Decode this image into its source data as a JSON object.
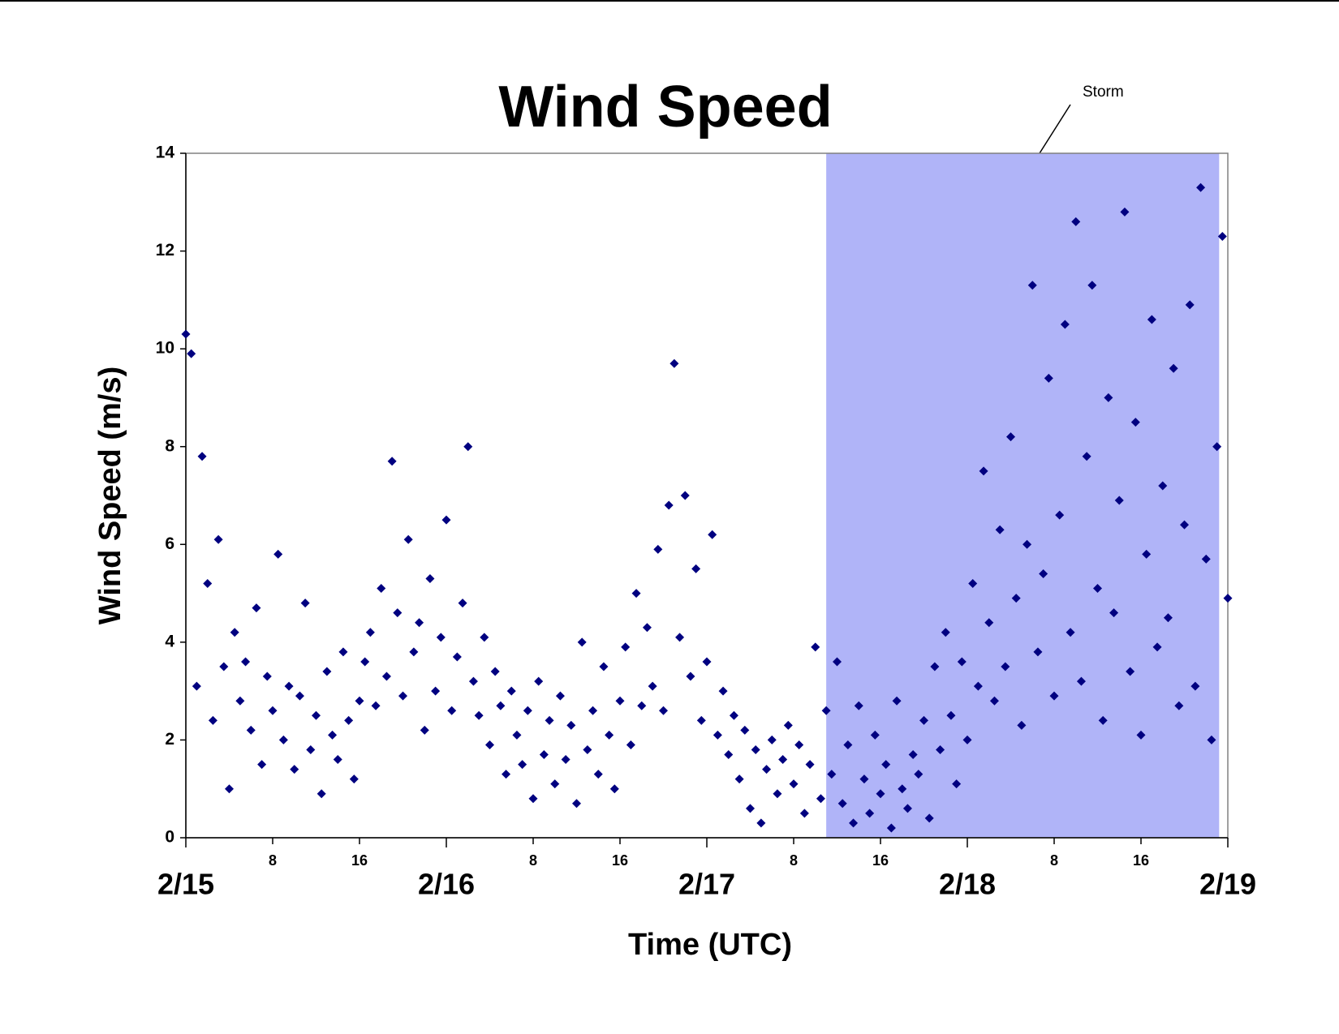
{
  "chart_data": {
    "type": "scatter",
    "title": "Wind Speed",
    "xlabel": "Time (UTC)",
    "ylabel": "Wind Speed (m/s)",
    "color": "#000080",
    "xlim": [
      0,
      96
    ],
    "ylim": [
      0,
      14
    ],
    "yticks": [
      0,
      2,
      4,
      6,
      8,
      10,
      12,
      14
    ],
    "xticks": [
      {
        "value": 0,
        "label": "2/15"
      },
      {
        "value": 24,
        "label": "2/16"
      },
      {
        "value": 48,
        "label": "2/17"
      },
      {
        "value": 72,
        "label": "2/18"
      },
      {
        "value": 96,
        "label": "2/19"
      }
    ],
    "xticks_minor": [
      8,
      16,
      {
        "value": 32,
        "label": "8"
      },
      {
        "value": 40,
        "label": "16"
      },
      {
        "value": 56,
        "label": "8"
      },
      {
        "value": 64,
        "label": "16"
      },
      {
        "value": 80,
        "label": "8"
      },
      {
        "value": 88,
        "label": "16"
      }
    ],
    "highlight": {
      "label": "Storm",
      "xrange": [
        59,
        95.2
      ],
      "color": "#b0b4f8"
    },
    "x": [
      0,
      0.5,
      1,
      1.5,
      2,
      2.5,
      3,
      3.5,
      4,
      4.5,
      5,
      5.5,
      6,
      6.5,
      7,
      7.5,
      8,
      8.5,
      9,
      9.5,
      10,
      10.5,
      11,
      11.5,
      12,
      12.5,
      13,
      13.5,
      14,
      14.5,
      15,
      15.5,
      16,
      16.5,
      17,
      17.5,
      18,
      18.5,
      19,
      19.5,
      20,
      20.5,
      21,
      21.5,
      22,
      22.5,
      23,
      23.5,
      24,
      24.5,
      25,
      25.5,
      26,
      26.5,
      27,
      27.5,
      28,
      28.5,
      29,
      29.5,
      30,
      30.5,
      31,
      31.5,
      32,
      32.5,
      33,
      33.5,
      34,
      34.5,
      35,
      35.5,
      36,
      36.5,
      37,
      37.5,
      38,
      38.5,
      39,
      39.5,
      40,
      40.5,
      41,
      41.5,
      42,
      42.5,
      43,
      43.5,
      44,
      44.5,
      45,
      45.5,
      46,
      46.5,
      47,
      47.5,
      48,
      48.5,
      49,
      49.5,
      50,
      50.5,
      51,
      51.5,
      52,
      52.5,
      53,
      53.5,
      54,
      54.5,
      55,
      55.5,
      56,
      56.5,
      57,
      57.5,
      58,
      58.5,
      59,
      59.5,
      60,
      60.5,
      61,
      61.5,
      62,
      62.5,
      63,
      63.5,
      64,
      64.5,
      65,
      65.5,
      66,
      66.5,
      67,
      67.5,
      68,
      68.5,
      69,
      69.5,
      70,
      70.5,
      71,
      71.5,
      72,
      72.5,
      73,
      73.5,
      74,
      74.5,
      75,
      75.5,
      76,
      76.5,
      77,
      77.5,
      78,
      78.5,
      79,
      79.5,
      80,
      80.5,
      81,
      81.5,
      82,
      82.5,
      83,
      83.5,
      84,
      84.5,
      85,
      85.5,
      86,
      86.5,
      87,
      87.5,
      88,
      88.5,
      89,
      89.5,
      90,
      90.5,
      91,
      91.5,
      92,
      92.5,
      93,
      93.5,
      94,
      94.5,
      95,
      95.5,
      96
    ],
    "y": [
      10.3,
      9.9,
      3.1,
      7.8,
      5.2,
      2.4,
      6.1,
      3.5,
      1.0,
      4.2,
      2.8,
      3.6,
      2.2,
      4.7,
      1.5,
      3.3,
      2.6,
      5.8,
      2.0,
      3.1,
      1.4,
      2.9,
      4.8,
      1.8,
      2.5,
      0.9,
      3.4,
      2.1,
      1.6,
      3.8,
      2.4,
      1.2,
      2.8,
      3.6,
      4.2,
      2.7,
      5.1,
      3.3,
      7.7,
      4.6,
      2.9,
      6.1,
      3.8,
      4.4,
      2.2,
      5.3,
      3.0,
      4.1,
      6.5,
      2.6,
      3.7,
      4.8,
      8.0,
      3.2,
      2.5,
      4.1,
      1.9,
      3.4,
      2.7,
      1.3,
      3.0,
      2.1,
      1.5,
      2.6,
      0.8,
      3.2,
      1.7,
      2.4,
      1.1,
      2.9,
      1.6,
      2.3,
      0.7,
      4.0,
      1.8,
      2.6,
      1.3,
      3.5,
      2.1,
      1.0,
      2.8,
      3.9,
      1.9,
      5.0,
      2.7,
      4.3,
      3.1,
      5.9,
      2.6,
      6.8,
      9.7,
      4.1,
      7.0,
      3.3,
      5.5,
      2.4,
      3.6,
      6.2,
      2.1,
      3.0,
      1.7,
      2.5,
      1.2,
      2.2,
      0.6,
      1.8,
      0.3,
      1.4,
      2.0,
      0.9,
      1.6,
      2.3,
      1.1,
      1.9,
      0.5,
      1.5,
      3.9,
      0.8,
      2.6,
      1.3,
      3.6,
      0.7,
      1.9,
      0.3,
      2.7,
      1.2,
      0.5,
      2.1,
      0.9,
      1.5,
      0.2,
      2.8,
      1.0,
      0.6,
      1.7,
      1.3,
      2.4,
      0.4,
      3.5,
      1.8,
      4.2,
      2.5,
      1.1,
      3.6,
      2.0,
      5.2,
      3.1,
      7.5,
      4.4,
      2.8,
      6.3,
      3.5,
      8.2,
      4.9,
      2.3,
      6.0,
      11.3,
      3.8,
      5.4,
      9.4,
      2.9,
      6.6,
      10.5,
      4.2,
      12.6,
      3.2,
      7.8,
      11.3,
      5.1,
      2.4,
      9.0,
      4.6,
      6.9,
      12.8,
      3.4,
      8.5,
      2.1,
      5.8,
      10.6,
      3.9,
      7.2,
      4.5,
      9.6,
      2.7,
      6.4,
      10.9,
      3.1,
      13.3,
      5.7,
      2.0,
      8.0,
      12.3,
      4.9
    ]
  }
}
